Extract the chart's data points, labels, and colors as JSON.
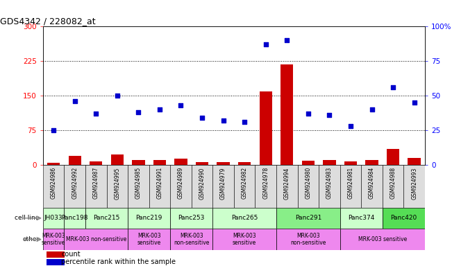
{
  "title": "GDS4342 / 228082_at",
  "samples": [
    "GSM924986",
    "GSM924992",
    "GSM924987",
    "GSM924995",
    "GSM924985",
    "GSM924991",
    "GSM924989",
    "GSM924990",
    "GSM924979",
    "GSM924982",
    "GSM924978",
    "GSM924994",
    "GSM924980",
    "GSM924983",
    "GSM924981",
    "GSM924984",
    "GSM924988",
    "GSM924993"
  ],
  "counts": [
    5,
    20,
    8,
    22,
    10,
    10,
    13,
    6,
    6,
    6,
    160,
    218,
    9,
    10,
    8,
    10,
    35,
    15
  ],
  "percentiles": [
    25,
    46,
    37,
    50,
    38,
    40,
    43,
    34,
    32,
    31,
    87,
    90,
    37,
    36,
    28,
    40,
    56,
    45
  ],
  "cell_lines": [
    {
      "label": "JH033",
      "start": 0,
      "end": 1,
      "color": "#ccffcc"
    },
    {
      "label": "Panc198",
      "start": 1,
      "end": 2,
      "color": "#ccffcc"
    },
    {
      "label": "Panc215",
      "start": 2,
      "end": 4,
      "color": "#ccffcc"
    },
    {
      "label": "Panc219",
      "start": 4,
      "end": 6,
      "color": "#ccffcc"
    },
    {
      "label": "Panc253",
      "start": 6,
      "end": 8,
      "color": "#ccffcc"
    },
    {
      "label": "Panc265",
      "start": 8,
      "end": 11,
      "color": "#ccffcc"
    },
    {
      "label": "Panc291",
      "start": 11,
      "end": 14,
      "color": "#88ee88"
    },
    {
      "label": "Panc374",
      "start": 14,
      "end": 16,
      "color": "#ccffcc"
    },
    {
      "label": "Panc420",
      "start": 16,
      "end": 18,
      "color": "#55dd55"
    }
  ],
  "other_groups": [
    {
      "label": "MRK-003\nsensitive",
      "start": 0,
      "end": 1,
      "color": "#ee88ee"
    },
    {
      "label": "MRK-003 non-sensitive",
      "start": 1,
      "end": 4,
      "color": "#ee88ee"
    },
    {
      "label": "MRK-003\nsensitive",
      "start": 4,
      "end": 6,
      "color": "#ee88ee"
    },
    {
      "label": "MRK-003\nnon-sensitive",
      "start": 6,
      "end": 8,
      "color": "#ee88ee"
    },
    {
      "label": "MRK-003\nsensitive",
      "start": 8,
      "end": 11,
      "color": "#ee88ee"
    },
    {
      "label": "MRK-003\nnon-sensitive",
      "start": 11,
      "end": 14,
      "color": "#ee88ee"
    },
    {
      "label": "MRK-003 sensitive",
      "start": 14,
      "end": 18,
      "color": "#ee88ee"
    }
  ],
  "bar_color": "#cc0000",
  "dot_color": "#0000cc",
  "left_ylim": [
    0,
    300
  ],
  "right_ylim": [
    0,
    100
  ],
  "left_yticks": [
    0,
    75,
    150,
    225,
    300
  ],
  "right_yticks": [
    0,
    25,
    50,
    75,
    100
  ],
  "right_yticklabels": [
    "0",
    "25",
    "50",
    "75",
    "100%"
  ],
  "hlines": [
    75,
    150,
    225
  ],
  "sample_bg_color": "#dddddd"
}
